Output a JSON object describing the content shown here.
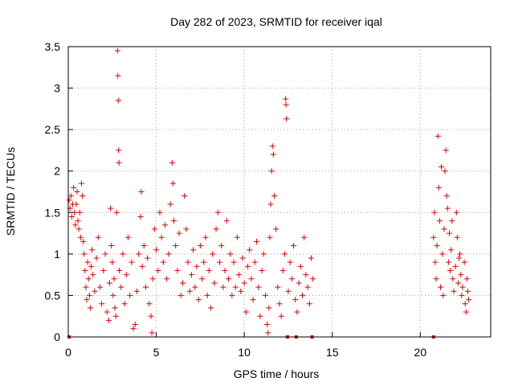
{
  "chart_data": {
    "type": "scatter",
    "title": "Day 282 of 2023, SRMTID for receiver iqal",
    "xlabel": "GPS time / hours",
    "ylabel": "SRMTID / TECUs",
    "xlim": [
      0,
      24
    ],
    "ylim": [
      0,
      3.5
    ],
    "xticks": [
      "0",
      "5",
      "10",
      "15",
      "20"
    ],
    "xtick_values": [
      0,
      5,
      10,
      15,
      20
    ],
    "yticks": [
      "0",
      "0.5",
      "1",
      "1.5",
      "2",
      "2.5",
      "3",
      "3.5"
    ],
    "ytick_values": [
      0,
      0.5,
      1,
      1.5,
      2,
      2.5,
      3,
      3.5
    ],
    "grid": true,
    "marker": "+",
    "color": "#e00000",
    "series": [
      {
        "name": "SRMTID",
        "points": [
          [
            0.05,
            1.65
          ],
          [
            0.1,
            1.55
          ],
          [
            0.15,
            1.7
          ],
          [
            0.2,
            1.45
          ],
          [
            0.25,
            1.6
          ],
          [
            0.3,
            1.8
          ],
          [
            0.35,
            1.5
          ],
          [
            0.4,
            1.35
          ],
          [
            0.45,
            1.6
          ],
          [
            0.5,
            1.75
          ],
          [
            0.55,
            1.4
          ],
          [
            0.6,
            1.3
          ],
          [
            0.65,
            1.5
          ],
          [
            0.7,
            1.2
          ],
          [
            0.75,
            1.85
          ],
          [
            0.8,
            1.7
          ],
          [
            0.85,
            1.15
          ],
          [
            0.9,
            1.0
          ],
          [
            0.95,
            0.8
          ],
          [
            1.0,
            0.6
          ],
          [
            1.05,
            0.45
          ],
          [
            1.1,
            0.9
          ],
          [
            1.15,
            0.7
          ],
          [
            1.2,
            0.5
          ],
          [
            1.25,
            0.35
          ],
          [
            1.3,
            0.85
          ],
          [
            1.35,
            1.05
          ],
          [
            1.4,
            0.75
          ],
          [
            1.5,
            0.55
          ],
          [
            1.6,
            0.95
          ],
          [
            1.7,
            1.2
          ],
          [
            1.8,
            0.6
          ],
          [
            1.9,
            0.4
          ],
          [
            2.0,
            0.8
          ],
          [
            2.1,
            1.0
          ],
          [
            2.2,
            0.3
          ],
          [
            2.3,
            0.2
          ],
          [
            2.35,
            0.65
          ],
          [
            2.4,
            1.55
          ],
          [
            2.45,
            1.1
          ],
          [
            2.5,
            0.9
          ],
          [
            2.55,
            0.5
          ],
          [
            2.6,
            0.7
          ],
          [
            2.65,
            0.35
          ],
          [
            2.7,
            0.25
          ],
          [
            2.75,
            1.5
          ],
          [
            2.8,
            3.45
          ],
          [
            2.82,
            3.15
          ],
          [
            2.84,
            2.85
          ],
          [
            2.86,
            2.25
          ],
          [
            2.88,
            2.1
          ],
          [
            2.9,
            0.8
          ],
          [
            3.0,
            0.6
          ],
          [
            3.1,
            1.0
          ],
          [
            3.2,
            0.4
          ],
          [
            3.3,
            0.75
          ],
          [
            3.4,
            1.2
          ],
          [
            3.5,
            0.5
          ],
          [
            3.6,
            0.9
          ],
          [
            3.7,
            0.1
          ],
          [
            3.8,
            0.15
          ],
          [
            3.9,
            0.55
          ],
          [
            4.0,
            1.0
          ],
          [
            4.1,
            1.45
          ],
          [
            4.15,
            1.75
          ],
          [
            4.2,
            0.85
          ],
          [
            4.3,
            1.1
          ],
          [
            4.4,
            0.6
          ],
          [
            4.5,
            0.95
          ],
          [
            4.6,
            0.4
          ],
          [
            4.7,
            0.25
          ],
          [
            4.75,
            0.05
          ],
          [
            4.8,
            0.7
          ],
          [
            4.9,
            1.3
          ],
          [
            5.0,
            1.05
          ],
          [
            5.1,
            0.8
          ],
          [
            5.2,
            1.5
          ],
          [
            5.3,
            1.2
          ],
          [
            5.4,
            0.9
          ],
          [
            5.5,
            1.35
          ],
          [
            5.6,
            0.7
          ],
          [
            5.7,
            1.0
          ],
          [
            5.8,
            1.6
          ],
          [
            5.9,
            2.1
          ],
          [
            5.95,
            1.85
          ],
          [
            6.0,
            1.4
          ],
          [
            6.1,
            1.1
          ],
          [
            6.2,
            0.8
          ],
          [
            6.3,
            1.25
          ],
          [
            6.4,
            0.5
          ],
          [
            6.5,
            0.65
          ],
          [
            6.6,
            1.7
          ],
          [
            6.7,
            1.3
          ],
          [
            6.8,
            0.9
          ],
          [
            6.9,
            0.55
          ],
          [
            7.0,
            0.75
          ],
          [
            7.1,
            1.05
          ],
          [
            7.2,
            0.6
          ],
          [
            7.3,
            0.85
          ],
          [
            7.4,
            0.45
          ],
          [
            7.5,
            1.1
          ],
          [
            7.6,
            0.7
          ],
          [
            7.7,
            0.9
          ],
          [
            7.8,
            1.2
          ],
          [
            7.9,
            0.5
          ],
          [
            8.0,
            0.8
          ],
          [
            8.1,
            0.35
          ],
          [
            8.2,
            1.0
          ],
          [
            8.3,
            0.65
          ],
          [
            8.4,
            1.3
          ],
          [
            8.5,
            1.5
          ],
          [
            8.6,
            0.9
          ],
          [
            8.7,
            1.1
          ],
          [
            8.8,
            0.6
          ],
          [
            8.9,
            0.8
          ],
          [
            9.0,
            1.4
          ],
          [
            9.1,
            0.7
          ],
          [
            9.2,
            1.0
          ],
          [
            9.3,
            0.5
          ],
          [
            9.4,
            0.9
          ],
          [
            9.5,
            0.6
          ],
          [
            9.6,
            1.2
          ],
          [
            9.7,
            0.75
          ],
          [
            9.8,
            0.55
          ],
          [
            9.9,
            0.95
          ],
          [
            10.0,
            0.65
          ],
          [
            10.1,
            0.3
          ],
          [
            10.2,
            0.85
          ],
          [
            10.3,
            1.05
          ],
          [
            10.4,
            0.7
          ],
          [
            10.5,
            0.45
          ],
          [
            10.6,
            0.9
          ],
          [
            10.7,
            1.15
          ],
          [
            10.8,
            0.6
          ],
          [
            10.9,
            0.25
          ],
          [
            11.0,
            0.8
          ],
          [
            11.1,
            1.0
          ],
          [
            11.2,
            0.5
          ],
          [
            11.3,
            0.15
          ],
          [
            11.35,
            0.05
          ],
          [
            11.4,
            0.35
          ],
          [
            11.45,
            1.2
          ],
          [
            11.5,
            1.6
          ],
          [
            11.55,
            2.0
          ],
          [
            11.6,
            2.3
          ],
          [
            11.65,
            2.2
          ],
          [
            11.7,
            1.7
          ],
          [
            11.8,
            1.3
          ],
          [
            11.9,
            0.6
          ],
          [
            12.0,
            0.4
          ],
          [
            12.1,
            0.25
          ],
          [
            12.2,
            0.8
          ],
          [
            12.3,
            1.0
          ],
          [
            12.35,
            2.87
          ],
          [
            12.37,
            2.8
          ],
          [
            12.39,
            2.63
          ],
          [
            12.5,
            0.55
          ],
          [
            12.6,
            0.9
          ],
          [
            12.7,
            0.7
          ],
          [
            12.8,
            1.1
          ],
          [
            12.9,
            0.45
          ],
          [
            13.0,
            0.3
          ],
          [
            13.1,
            0.65
          ],
          [
            13.2,
            0.85
          ],
          [
            13.3,
            0.5
          ],
          [
            13.4,
            1.2
          ],
          [
            13.5,
            0.75
          ],
          [
            13.6,
            0.6
          ],
          [
            13.7,
            0.4
          ],
          [
            13.8,
            0.95
          ],
          [
            13.9,
            0.7
          ],
          [
            20.75,
            1.2
          ],
          [
            20.8,
            1.5
          ],
          [
            20.85,
            0.9
          ],
          [
            20.9,
            0.7
          ],
          [
            20.95,
            1.1
          ],
          [
            21.0,
            2.42
          ],
          [
            21.05,
            1.8
          ],
          [
            21.1,
            1.4
          ],
          [
            21.15,
            0.6
          ],
          [
            21.2,
            2.05
          ],
          [
            21.25,
            1.0
          ],
          [
            21.3,
            0.5
          ],
          [
            21.35,
            1.3
          ],
          [
            21.4,
            2.0
          ],
          [
            21.45,
            2.25
          ],
          [
            21.5,
            1.7
          ],
          [
            21.55,
            1.55
          ],
          [
            21.6,
            0.9
          ],
          [
            21.65,
            1.25
          ],
          [
            21.7,
            0.8
          ],
          [
            21.75,
            1.05
          ],
          [
            21.8,
            1.4
          ],
          [
            21.85,
            0.7
          ],
          [
            21.9,
            0.55
          ],
          [
            22.0,
            0.85
          ],
          [
            22.05,
            1.5
          ],
          [
            22.1,
            1.2
          ],
          [
            22.15,
            0.65
          ],
          [
            22.2,
            0.95
          ],
          [
            22.25,
            1.0
          ],
          [
            22.3,
            0.75
          ],
          [
            22.35,
            0.5
          ],
          [
            22.4,
            0.6
          ],
          [
            22.5,
            0.9
          ],
          [
            22.55,
            0.4
          ],
          [
            22.6,
            0.3
          ],
          [
            22.65,
            0.7
          ],
          [
            22.7,
            0.55
          ],
          [
            22.75,
            0.45
          ]
        ]
      }
    ],
    "gap_markers": [
      0.05,
      12.45,
      12.95,
      13.85,
      20.75
    ]
  }
}
